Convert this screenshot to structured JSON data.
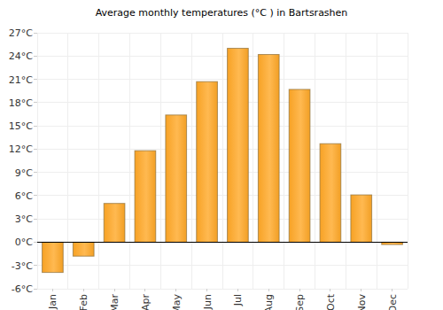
{
  "chart_data": {
    "type": "bar",
    "title": "Average monthly temperatures (°C ) in Bartsrashen",
    "categories": [
      "Jan",
      "Feb",
      "Mar",
      "Apr",
      "May",
      "Jun",
      "Jul",
      "Aug",
      "Sep",
      "Oct",
      "Nov",
      "Dec"
    ],
    "values": [
      -3.9,
      -1.8,
      5.0,
      11.8,
      16.4,
      20.7,
      25.0,
      24.2,
      19.7,
      12.7,
      6.1,
      -0.3
    ],
    "color": "#ffa726",
    "ylim": [
      -6,
      27
    ],
    "yticks": [
      {
        "value": -6,
        "label": "-6°C"
      },
      {
        "value": -3,
        "label": "-3°C"
      },
      {
        "value": 0,
        "label": "0°C"
      },
      {
        "value": 3,
        "label": "3°C"
      },
      {
        "value": 6,
        "label": "6°C"
      },
      {
        "value": 9,
        "label": "9°C"
      },
      {
        "value": 12,
        "label": "12°C"
      },
      {
        "value": 15,
        "label": "15°C"
      },
      {
        "value": 18,
        "label": "18°C"
      },
      {
        "value": 21,
        "label": "21°C"
      },
      {
        "value": 24,
        "label": "24°C"
      },
      {
        "value": 27,
        "label": "27°C"
      }
    ],
    "grid": true
  }
}
